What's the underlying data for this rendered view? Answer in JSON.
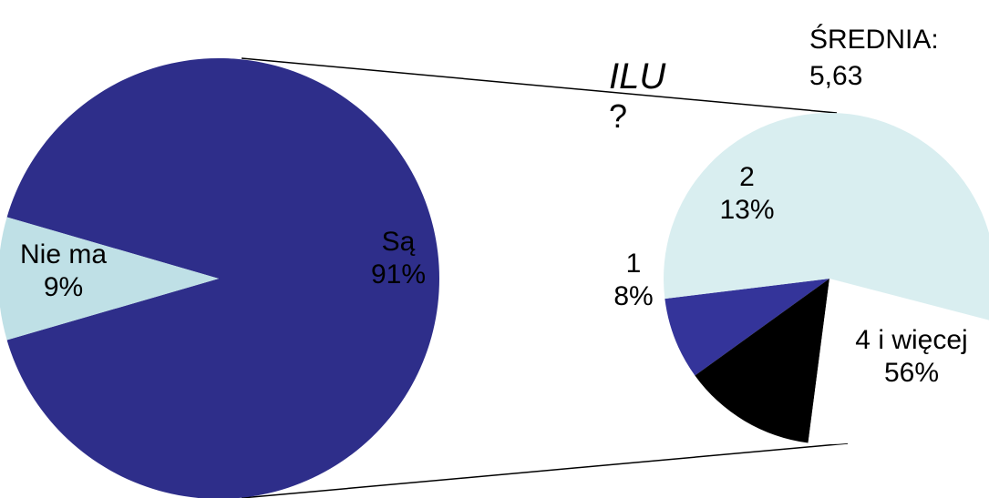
{
  "question": {
    "line1": "ILU",
    "line2": "?"
  },
  "average": {
    "label": "ŚREDNIA:",
    "value": "5,63"
  },
  "chart_data": [
    {
      "type": "pie",
      "slices": [
        {
          "label": "Są",
          "percent_label": "91%",
          "value": 91,
          "color": "#2e2e8a"
        },
        {
          "label": "Nie ma",
          "percent_label": "9%",
          "value": 9,
          "color": "#bfe0e6"
        }
      ]
    },
    {
      "type": "pie",
      "slices": [
        {
          "label": "1",
          "percent_label": "8%",
          "value": 8,
          "color": "#34349a"
        },
        {
          "label": "2",
          "percent_label": "13%",
          "value": 13,
          "color": "#000000"
        },
        {
          "label": "",
          "percent_label": "",
          "value": 23,
          "color": "#ffffff"
        },
        {
          "label": "4 i więcej",
          "percent_label": "56%",
          "value": 56,
          "color": "#d9eef0"
        }
      ]
    }
  ]
}
